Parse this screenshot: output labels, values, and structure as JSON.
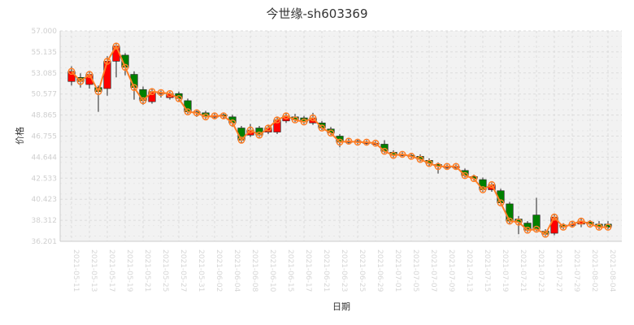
{
  "chart_data": {
    "type": "candlestick",
    "title": "今世缘-sh603369",
    "xlabel": "日期",
    "ylabel": "价格",
    "ylim": [
      36.201,
      57.0
    ],
    "yticks": [
      "57.000",
      "55.135",
      "53.085",
      "50.577",
      "48.865",
      "46.755",
      "44.644",
      "42.533",
      "40.423",
      "38.312",
      "36.201"
    ],
    "grid": true,
    "colors": {
      "up": "#ff0000",
      "down": "#008000",
      "close_line": "#ff7f27",
      "plot_bg": "#f2f2f2",
      "grid": "#dcdcdc"
    },
    "candles": [
      {
        "date": "2021-05-11",
        "o": 52.0,
        "c": 53.0,
        "h": 53.5,
        "l": 51.6
      },
      {
        "date": "2021-05-12",
        "o": 52.4,
        "c": 52.0,
        "h": 52.8,
        "l": 51.4
      },
      {
        "date": "2021-05-13",
        "o": 51.7,
        "c": 52.7,
        "h": 53.0,
        "l": 51.3
      },
      {
        "date": "2021-05-14",
        "o": 51.4,
        "c": 51.0,
        "h": 51.6,
        "l": 49.0
      },
      {
        "date": "2021-05-17",
        "o": 51.3,
        "c": 54.0,
        "h": 54.5,
        "l": 50.6
      },
      {
        "date": "2021-05-18",
        "o": 54.0,
        "c": 55.5,
        "h": 55.8,
        "l": 52.4
      },
      {
        "date": "2021-05-19",
        "o": 54.6,
        "c": 53.4,
        "h": 54.8,
        "l": 52.6
      },
      {
        "date": "2021-05-20",
        "o": 52.7,
        "c": 51.4,
        "h": 53.0,
        "l": 50.2
      },
      {
        "date": "2021-05-21",
        "o": 51.2,
        "c": 50.1,
        "h": 51.5,
        "l": 49.7
      },
      {
        "date": "2021-05-24",
        "o": 50.0,
        "c": 51.0,
        "h": 51.3,
        "l": 49.8
      },
      {
        "date": "2021-05-25",
        "o": 50.8,
        "c": 50.9,
        "h": 51.1,
        "l": 50.4
      },
      {
        "date": "2021-05-26",
        "o": 50.4,
        "c": 50.8,
        "h": 51.0,
        "l": 50.2
      },
      {
        "date": "2021-05-27",
        "o": 50.8,
        "c": 50.3,
        "h": 51.0,
        "l": 50.0
      },
      {
        "date": "2021-05-28",
        "o": 50.1,
        "c": 49.0,
        "h": 50.3,
        "l": 48.8
      },
      {
        "date": "2021-05-31",
        "o": 49.0,
        "c": 48.9,
        "h": 49.2,
        "l": 48.5
      },
      {
        "date": "2021-06-01",
        "o": 48.9,
        "c": 48.5,
        "h": 49.1,
        "l": 48.3
      },
      {
        "date": "2021-06-02",
        "o": 48.6,
        "c": 48.6,
        "h": 48.9,
        "l": 48.3
      },
      {
        "date": "2021-06-03",
        "o": 48.7,
        "c": 48.6,
        "h": 48.9,
        "l": 48.3
      },
      {
        "date": "2021-06-04",
        "o": 48.5,
        "c": 47.9,
        "h": 48.7,
        "l": 47.5
      },
      {
        "date": "2021-06-07",
        "o": 47.4,
        "c": 46.2,
        "h": 47.6,
        "l": 45.9
      },
      {
        "date": "2021-06-08",
        "o": 46.7,
        "c": 47.2,
        "h": 47.8,
        "l": 46.5
      },
      {
        "date": "2021-06-09",
        "o": 47.4,
        "c": 46.7,
        "h": 47.6,
        "l": 46.5
      },
      {
        "date": "2021-06-10",
        "o": 47.0,
        "c": 47.4,
        "h": 47.7,
        "l": 46.8
      },
      {
        "date": "2021-06-11",
        "o": 47.0,
        "c": 48.2,
        "h": 48.5,
        "l": 46.8
      },
      {
        "date": "2021-06-15",
        "o": 48.1,
        "c": 48.6,
        "h": 48.9,
        "l": 47.9
      },
      {
        "date": "2021-06-16",
        "o": 48.5,
        "c": 48.2,
        "h": 48.8,
        "l": 48.0
      },
      {
        "date": "2021-06-17",
        "o": 48.4,
        "c": 48.0,
        "h": 48.6,
        "l": 47.8
      },
      {
        "date": "2021-06-18",
        "o": 47.9,
        "c": 48.4,
        "h": 48.9,
        "l": 47.7
      },
      {
        "date": "2021-06-21",
        "o": 47.9,
        "c": 47.4,
        "h": 48.1,
        "l": 47.2
      },
      {
        "date": "2021-06-22",
        "o": 47.3,
        "c": 46.9,
        "h": 47.5,
        "l": 46.7
      },
      {
        "date": "2021-06-23",
        "o": 46.6,
        "c": 46.0,
        "h": 46.8,
        "l": 45.5
      },
      {
        "date": "2021-06-24",
        "o": 46.1,
        "c": 46.1,
        "h": 46.4,
        "l": 45.8
      },
      {
        "date": "2021-06-25",
        "o": 46.1,
        "c": 46.0,
        "h": 46.3,
        "l": 45.8
      },
      {
        "date": "2021-06-28",
        "o": 45.9,
        "c": 46.0,
        "h": 46.2,
        "l": 45.7
      },
      {
        "date": "2021-06-29",
        "o": 45.9,
        "c": 45.9,
        "h": 46.1,
        "l": 45.7
      },
      {
        "date": "2021-06-30",
        "o": 45.8,
        "c": 45.1,
        "h": 46.2,
        "l": 44.9
      },
      {
        "date": "2021-07-01",
        "o": 45.0,
        "c": 44.7,
        "h": 45.2,
        "l": 44.5
      },
      {
        "date": "2021-07-02",
        "o": 44.8,
        "c": 44.8,
        "h": 45.0,
        "l": 44.6
      },
      {
        "date": "2021-07-05",
        "o": 44.7,
        "c": 44.6,
        "h": 44.9,
        "l": 44.4
      },
      {
        "date": "2021-07-06",
        "o": 44.6,
        "c": 44.3,
        "h": 44.8,
        "l": 44.1
      },
      {
        "date": "2021-07-07",
        "o": 44.2,
        "c": 43.9,
        "h": 44.4,
        "l": 43.6
      },
      {
        "date": "2021-07-08",
        "o": 43.8,
        "c": 43.6,
        "h": 44.0,
        "l": 42.9
      },
      {
        "date": "2021-07-09",
        "o": 43.5,
        "c": 43.6,
        "h": 43.8,
        "l": 43.3
      },
      {
        "date": "2021-07-12",
        "o": 43.5,
        "c": 43.6,
        "h": 43.8,
        "l": 43.3
      },
      {
        "date": "2021-07-13",
        "o": 43.2,
        "c": 42.7,
        "h": 43.4,
        "l": 42.5
      },
      {
        "date": "2021-07-14",
        "o": 42.6,
        "c": 42.4,
        "h": 42.8,
        "l": 42.2
      },
      {
        "date": "2021-07-15",
        "o": 42.3,
        "c": 41.3,
        "h": 42.5,
        "l": 41.1
      },
      {
        "date": "2021-07-16",
        "o": 41.3,
        "c": 41.8,
        "h": 42.0,
        "l": 41.1
      },
      {
        "date": "2021-07-19",
        "o": 41.2,
        "c": 40.0,
        "h": 41.4,
        "l": 39.8
      },
      {
        "date": "2021-07-20",
        "o": 39.9,
        "c": 38.2,
        "h": 40.1,
        "l": 37.9
      },
      {
        "date": "2021-07-21",
        "o": 38.4,
        "c": 38.1,
        "h": 38.7,
        "l": 36.9
      },
      {
        "date": "2021-07-22",
        "o": 38.0,
        "c": 37.3,
        "h": 38.2,
        "l": 37.1
      },
      {
        "date": "2021-07-23",
        "o": 38.8,
        "c": 37.4,
        "h": 40.5,
        "l": 37.2
      },
      {
        "date": "2021-07-26",
        "o": 37.2,
        "c": 36.9,
        "h": 37.4,
        "l": 36.7
      },
      {
        "date": "2021-07-27",
        "o": 37.0,
        "c": 38.6,
        "h": 38.9,
        "l": 36.8
      },
      {
        "date": "2021-07-28",
        "o": 37.8,
        "c": 37.6,
        "h": 38.0,
        "l": 37.4
      },
      {
        "date": "2021-07-29",
        "o": 37.9,
        "c": 37.9,
        "h": 38.2,
        "l": 37.6
      },
      {
        "date": "2021-07-30",
        "o": 37.9,
        "c": 38.2,
        "h": 38.5,
        "l": 37.6
      },
      {
        "date": "2021-08-02",
        "o": 38.1,
        "c": 37.9,
        "h": 38.3,
        "l": 37.7
      },
      {
        "date": "2021-08-03",
        "o": 37.9,
        "c": 37.6,
        "h": 38.2,
        "l": 37.4
      },
      {
        "date": "2021-08-04",
        "o": 37.9,
        "c": 37.6,
        "h": 38.2,
        "l": 37.4
      }
    ],
    "xtick_every": 2
  }
}
